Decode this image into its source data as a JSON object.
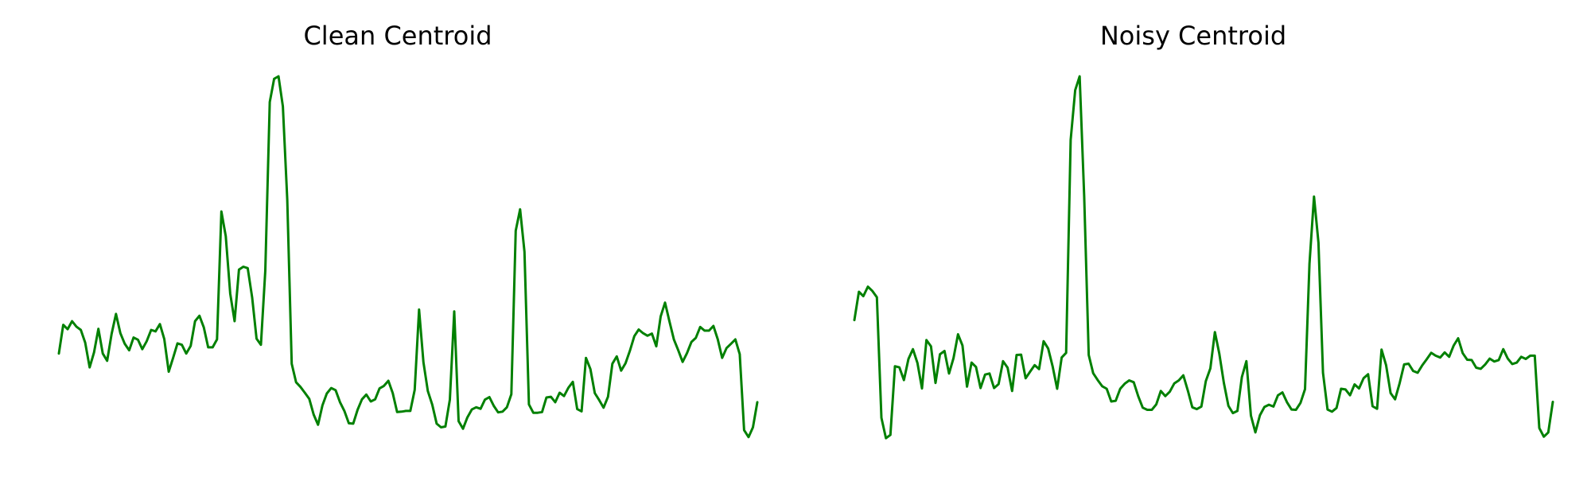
{
  "colors": {
    "line": "#008000",
    "background": "#ffffff",
    "text": "#000000"
  },
  "chart_data": [
    {
      "type": "line",
      "title": "Clean Centroid",
      "axes": "off",
      "grid": false,
      "legend": "none",
      "xlim": [
        0,
        143
      ],
      "ylim": [
        0,
        1
      ],
      "series": [
        {
          "color": "#008000",
          "values": [
            0.237,
            0.316,
            0.304,
            0.326,
            0.311,
            0.302,
            0.267,
            0.199,
            0.24,
            0.305,
            0.237,
            0.217,
            0.291,
            0.346,
            0.293,
            0.264,
            0.246,
            0.281,
            0.275,
            0.249,
            0.271,
            0.302,
            0.298,
            0.318,
            0.277,
            0.187,
            0.225,
            0.265,
            0.261,
            0.237,
            0.258,
            0.326,
            0.341,
            0.309,
            0.254,
            0.254,
            0.276,
            0.628,
            0.56,
            0.402,
            0.326,
            0.468,
            0.476,
            0.472,
            0.391,
            0.278,
            0.261,
            0.465,
            0.929,
            0.993,
            1.0,
            0.917,
            0.661,
            0.209,
            0.158,
            0.145,
            0.129,
            0.112,
            0.069,
            0.041,
            0.094,
            0.127,
            0.142,
            0.136,
            0.103,
            0.079,
            0.045,
            0.044,
            0.082,
            0.111,
            0.124,
            0.105,
            0.111,
            0.141,
            0.148,
            0.162,
            0.128,
            0.076,
            0.077,
            0.079,
            0.079,
            0.137,
            0.358,
            0.213,
            0.134,
            0.096,
            0.044,
            0.034,
            0.036,
            0.11,
            0.353,
            0.051,
            0.03,
            0.061,
            0.083,
            0.089,
            0.085,
            0.11,
            0.117,
            0.093,
            0.075,
            0.077,
            0.089,
            0.125,
            0.575,
            0.634,
            0.517,
            0.097,
            0.074,
            0.074,
            0.076,
            0.116,
            0.118,
            0.103,
            0.129,
            0.12,
            0.143,
            0.159,
            0.084,
            0.078,
            0.225,
            0.194,
            0.128,
            0.109,
            0.088,
            0.118,
            0.209,
            0.229,
            0.19,
            0.21,
            0.245,
            0.285,
            0.303,
            0.293,
            0.286,
            0.292,
            0.257,
            0.339,
            0.377,
            0.325,
            0.276,
            0.246,
            0.214,
            0.238,
            0.269,
            0.28,
            0.31,
            0.3,
            0.3,
            0.313,
            0.276,
            0.225,
            0.252,
            0.264,
            0.276,
            0.235,
            0.026,
            0.007,
            0.034,
            0.103
          ]
        }
      ]
    },
    {
      "type": "line",
      "title": "Noisy Centroid",
      "axes": "off",
      "grid": false,
      "legend": "none",
      "xlim": [
        0,
        143
      ],
      "ylim": [
        0,
        1
      ],
      "series": [
        {
          "color": "#008000",
          "values": [
            0.329,
            0.407,
            0.395,
            0.421,
            0.409,
            0.392,
            0.06,
            0.004,
            0.013,
            0.202,
            0.199,
            0.164,
            0.222,
            0.249,
            0.211,
            0.141,
            0.274,
            0.257,
            0.156,
            0.235,
            0.244,
            0.182,
            0.224,
            0.29,
            0.259,
            0.146,
            0.212,
            0.2,
            0.142,
            0.179,
            0.182,
            0.142,
            0.153,
            0.216,
            0.198,
            0.134,
            0.233,
            0.234,
            0.169,
            0.187,
            0.205,
            0.194,
            0.271,
            0.251,
            0.202,
            0.14,
            0.226,
            0.239,
            0.825,
            0.962,
            1.0,
            0.67,
            0.233,
            0.183,
            0.164,
            0.147,
            0.14,
            0.105,
            0.107,
            0.14,
            0.154,
            0.163,
            0.158,
            0.119,
            0.088,
            0.082,
            0.082,
            0.097,
            0.134,
            0.12,
            0.132,
            0.155,
            0.163,
            0.177,
            0.135,
            0.089,
            0.084,
            0.091,
            0.161,
            0.196,
            0.296,
            0.236,
            0.156,
            0.093,
            0.073,
            0.079,
            0.172,
            0.216,
            0.066,
            0.02,
            0.067,
            0.09,
            0.096,
            0.091,
            0.122,
            0.13,
            0.103,
            0.083,
            0.082,
            0.101,
            0.139,
            0.484,
            0.669,
            0.542,
            0.184,
            0.083,
            0.077,
            0.087,
            0.14,
            0.138,
            0.122,
            0.152,
            0.141,
            0.169,
            0.18,
            0.092,
            0.085,
            0.248,
            0.205,
            0.128,
            0.111,
            0.155,
            0.207,
            0.209,
            0.189,
            0.184,
            0.204,
            0.221,
            0.239,
            0.231,
            0.226,
            0.24,
            0.228,
            0.259,
            0.279,
            0.238,
            0.22,
            0.219,
            0.198,
            0.195,
            0.207,
            0.223,
            0.215,
            0.219,
            0.249,
            0.223,
            0.208,
            0.212,
            0.228,
            0.222,
            0.231,
            0.231,
            0.032,
            0.008,
            0.02,
            0.104
          ]
        }
      ]
    }
  ]
}
